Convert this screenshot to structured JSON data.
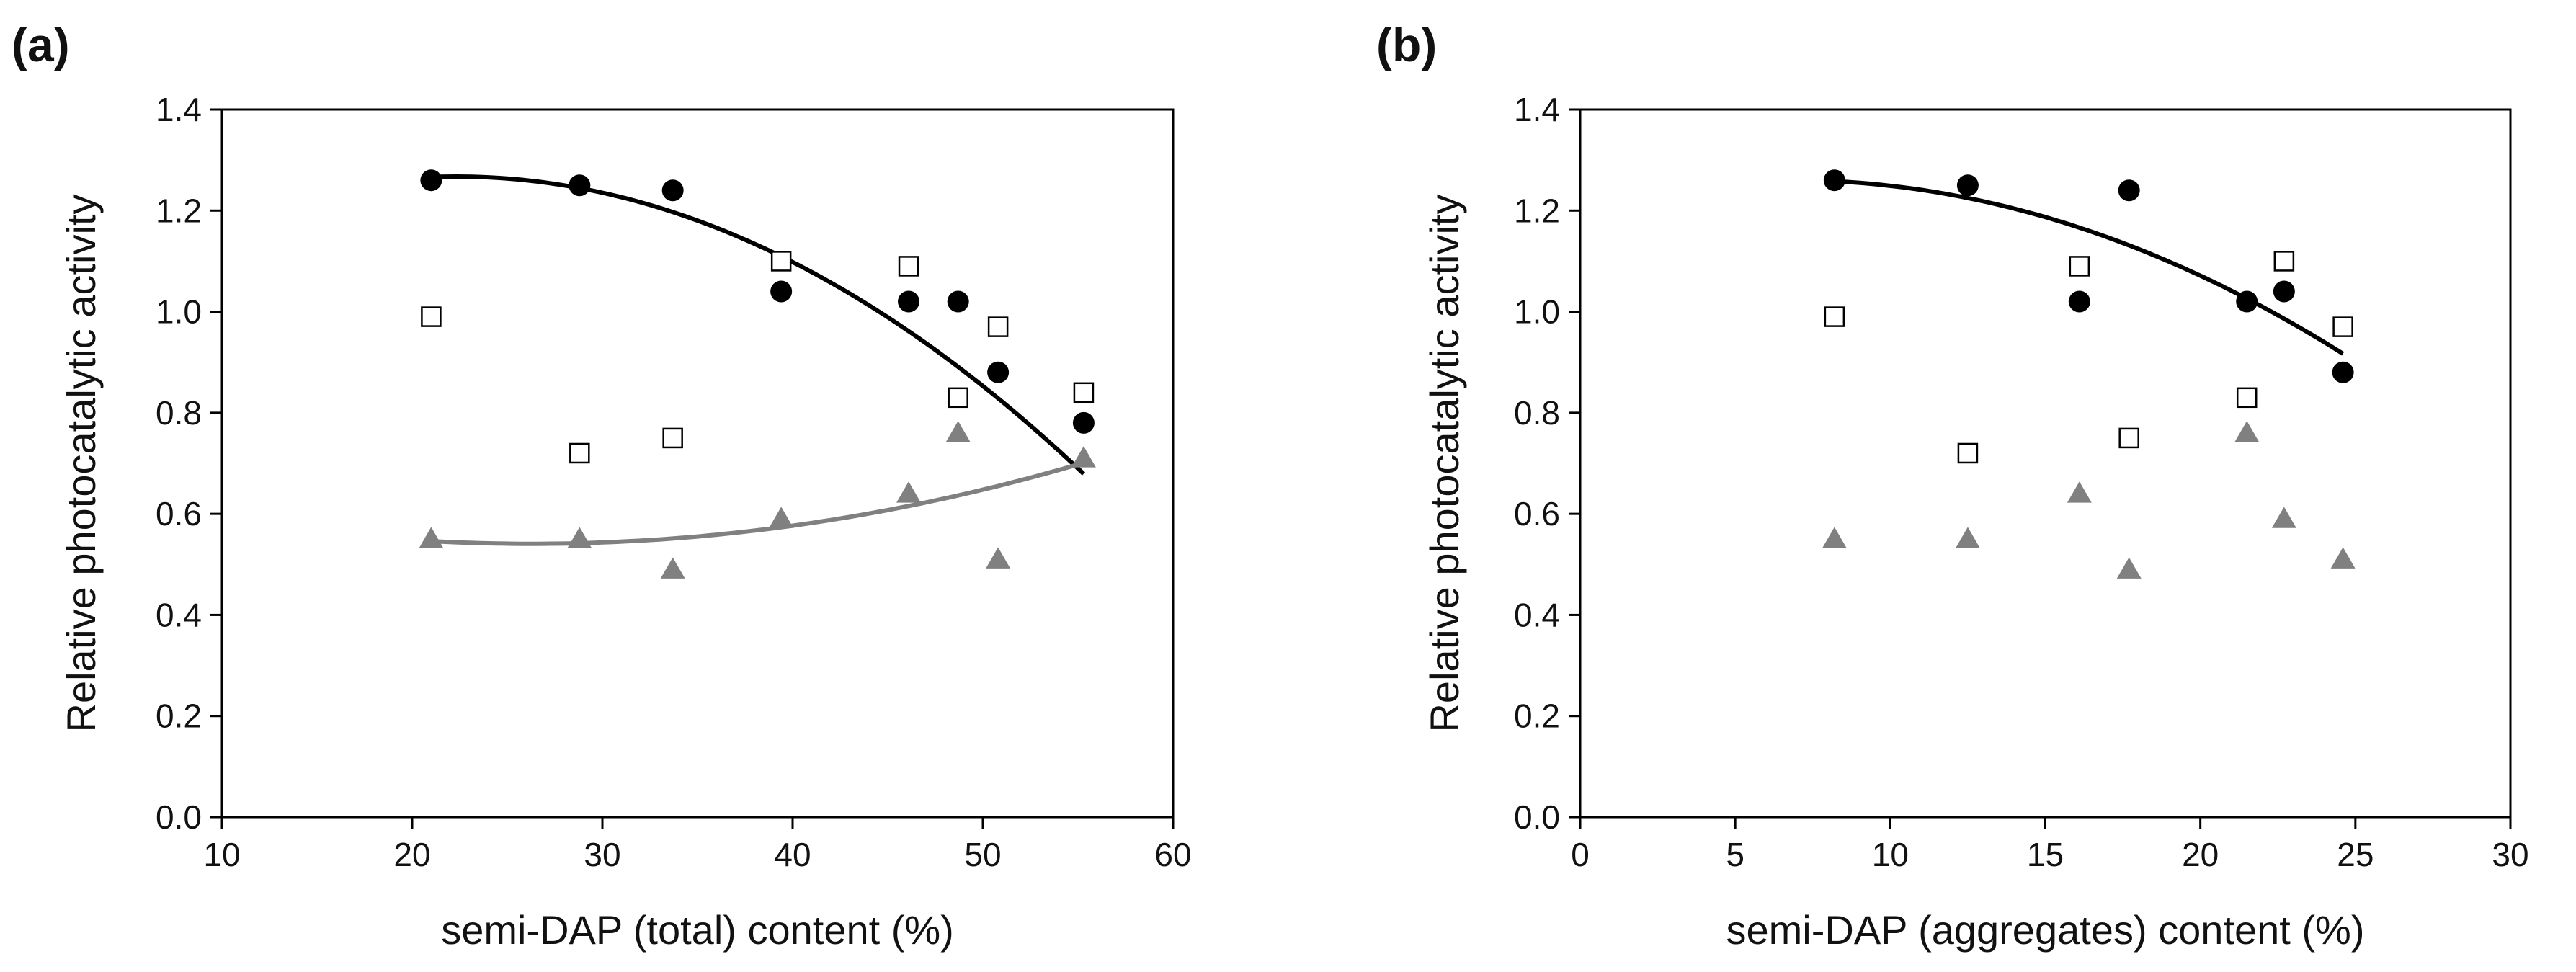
{
  "chart_data": [
    {
      "type": "scatter",
      "panel_label": "(a)",
      "title": "",
      "xlabel": "semi-DAP (total) content (%)",
      "ylabel": "Relative photocatalytic activity",
      "xlim": [
        10,
        60
      ],
      "ylim": [
        0.0,
        1.4
      ],
      "xticks": [
        "10",
        "20",
        "30",
        "40",
        "50",
        "60"
      ],
      "yticks": [
        "0.0",
        "0.2",
        "0.4",
        "0.6",
        "0.8",
        "1.0",
        "1.2",
        "1.4"
      ],
      "grid": false,
      "legend": "none",
      "series": [
        {
          "name": "filled circles",
          "marker": "circle",
          "color": "#000000",
          "x": [
            21.0,
            28.8,
            33.7,
            39.4,
            46.1,
            48.7,
            50.8,
            55.3
          ],
          "y": [
            1.26,
            1.25,
            1.24,
            1.04,
            1.02,
            1.02,
            0.88,
            0.78
          ],
          "fit": {
            "x": [
              21.0,
              55.3
            ],
            "coefficients": [
              1.2665,
              0.0014,
              -0.00054
            ],
            "center": 21.0
          }
        },
        {
          "name": "open squares",
          "marker": "square-open",
          "color": "#000000",
          "x": [
            21.0,
            28.8,
            33.7,
            39.4,
            46.1,
            48.7,
            50.8,
            55.3
          ],
          "y": [
            0.99,
            0.72,
            0.75,
            1.1,
            1.09,
            0.83,
            0.97,
            0.84
          ]
        },
        {
          "name": "gray triangles",
          "marker": "triangle",
          "color": "#808080",
          "x": [
            21.0,
            28.8,
            33.7,
            39.4,
            46.1,
            48.7,
            50.8,
            55.3
          ],
          "y": [
            0.55,
            0.55,
            0.49,
            0.59,
            0.64,
            0.76,
            0.51,
            0.71
          ],
          "fit": {
            "x": [
              21.0,
              55.3
            ],
            "coefficients": [
              0.546,
              -0.002,
              0.00019
            ],
            "center": 21.0
          }
        }
      ]
    },
    {
      "type": "scatter",
      "panel_label": "(b)",
      "title": "",
      "xlabel": "semi-DAP (aggregates) content (%)",
      "ylabel": "Relative photocatalytic activity",
      "xlim": [
        0,
        30
      ],
      "ylim": [
        0.0,
        1.4
      ],
      "xticks": [
        "0",
        "5",
        "10",
        "15",
        "20",
        "25",
        "30"
      ],
      "yticks": [
        "0.0",
        "0.2",
        "0.4",
        "0.6",
        "0.8",
        "1.0",
        "1.2",
        "1.4"
      ],
      "grid": false,
      "legend": "none",
      "series": [
        {
          "name": "filled circles",
          "marker": "circle",
          "color": "#000000",
          "x": [
            8.2,
            12.5,
            16.1,
            17.7,
            21.5,
            22.7,
            24.6
          ],
          "y": [
            1.26,
            1.25,
            1.02,
            1.24,
            1.02,
            1.04,
            0.88
          ],
          "fit": {
            "x": [
              8.2,
              24.6
            ],
            "coefficients": [
              1.2582,
              -0.0031,
              -0.00108
            ],
            "center": 8.2
          }
        },
        {
          "name": "open squares",
          "marker": "square-open",
          "color": "#000000",
          "x": [
            8.2,
            12.5,
            16.1,
            17.7,
            21.5,
            22.7,
            24.6
          ],
          "y": [
            0.99,
            0.72,
            1.09,
            0.75,
            0.83,
            1.1,
            0.97
          ]
        },
        {
          "name": "gray triangles",
          "marker": "triangle",
          "color": "#808080",
          "x": [
            8.2,
            12.5,
            16.1,
            17.7,
            21.5,
            22.7,
            24.6
          ],
          "y": [
            0.55,
            0.55,
            0.64,
            0.49,
            0.76,
            0.59,
            0.51
          ]
        }
      ]
    }
  ]
}
